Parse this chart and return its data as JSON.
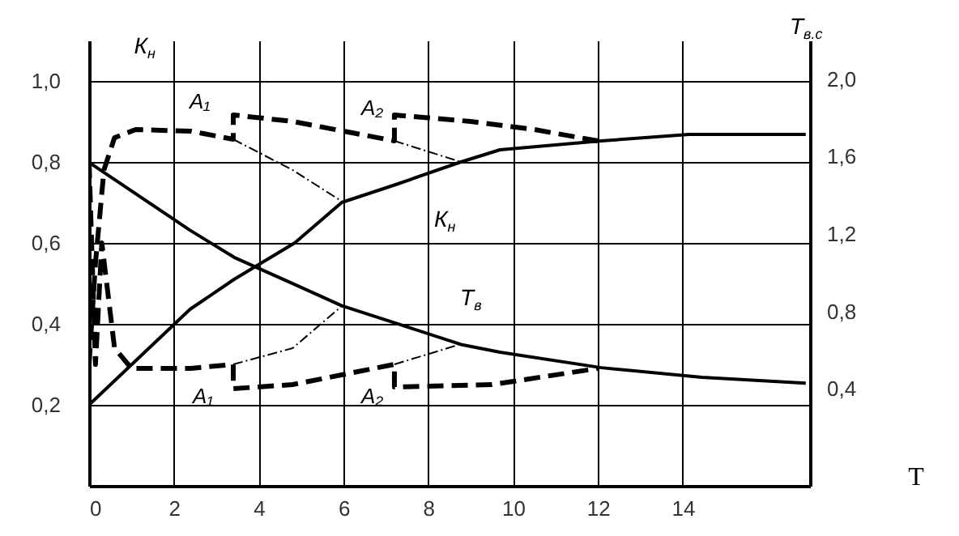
{
  "chart_data": {
    "type": "line",
    "xlabel": "T",
    "ylabel": "К$_{н}$",
    "y2label": "Т$_{в.с}$",
    "xlim": [
      0,
      17
    ],
    "xticks": [
      0,
      2,
      4,
      6,
      8,
      10,
      12,
      14
    ],
    "ylim": [
      0,
      1.1
    ],
    "yticks": [
      {
        "value": 0.2,
        "label": "0,2"
      },
      {
        "value": 0.4,
        "label": "0,4"
      },
      {
        "value": 0.6,
        "label": "0,6"
      },
      {
        "value": 0.8,
        "label": "0,8"
      },
      {
        "value": 1.0,
        "label": "1,0"
      }
    ],
    "y2lim": [
      -0.1,
      2.2
    ],
    "y2ticks": [
      {
        "value": 0.4,
        "label": "0,4"
      },
      {
        "value": 0.8,
        "label": "0,8"
      },
      {
        "value": 1.2,
        "label": "1,2"
      },
      {
        "value": 1.6,
        "label": "1,6"
      },
      {
        "value": 2.0,
        "label": "2,0"
      }
    ],
    "grid": true,
    "series": [
      {
        "name": "К$_{н}$",
        "color": "#000000",
        "line_style": "solid",
        "x": [
          0,
          2.38,
          3.42,
          4.85,
          5.96,
          7.23,
          8.77,
          9.69,
          12.08,
          14.15,
          16.9
        ],
        "values": [
          0.2,
          0.436,
          0.51,
          0.6,
          0.7,
          0.744,
          0.8,
          0.83,
          0.852,
          0.868,
          0.868
        ]
      },
      {
        "name": "Т$_{в}$",
        "color": "#000000",
        "line_style": "solid",
        "axis": "y2",
        "x": [
          0,
          2.38,
          3.42,
          4.85,
          5.96,
          7.23,
          8.77,
          9.69,
          12.08,
          14.45,
          16.9
        ],
        "values": [
          1.57,
          1.22,
          1.08,
          0.94,
          0.83,
          0.74,
          0.63,
          0.59,
          0.51,
          0.46,
          0.43
        ]
      },
      {
        "color": "#000000",
        "line_style": "dashed",
        "x": [
          0,
          0.15,
          0.35,
          0.6,
          1.1,
          2.4,
          3.4,
          3.4,
          4.8,
          7.2,
          7.2,
          9.0,
          10.5,
          12.0
        ],
        "values": [
          0.3,
          0.55,
          0.78,
          0.86,
          0.88,
          0.876,
          0.856,
          0.916,
          0.9,
          0.852,
          0.916,
          0.9,
          0.88,
          0.852
        ]
      },
      {
        "color": "#000000",
        "line_style": "dashed",
        "x": [
          0,
          0.15,
          0.3,
          0.6,
          1.0,
          2.4,
          3.4,
          3.4,
          4.8,
          7.2,
          7.2,
          9.5,
          12.0
        ],
        "values": [
          0.8,
          0.3,
          0.6,
          0.34,
          0.29,
          0.29,
          0.3,
          0.24,
          0.25,
          0.3,
          0.244,
          0.25,
          0.29
        ]
      },
      {
        "color": "#000000",
        "line_style": "dotted",
        "x": [
          3.4,
          4.8,
          6.0
        ],
        "values": [
          0.856,
          0.78,
          0.7
        ]
      },
      {
        "color": "#000000",
        "line_style": "dotted",
        "x": [
          7.2,
          8.77
        ],
        "values": [
          0.852,
          0.8
        ]
      },
      {
        "color": "#000000",
        "line_style": "dotted",
        "x": [
          3.4,
          4.8,
          5.96
        ],
        "values": [
          0.3,
          0.34,
          0.444
        ]
      },
      {
        "color": "#000000",
        "line_style": "dotted",
        "x": [
          7.2,
          8.77
        ],
        "values": [
          0.3,
          0.35
        ]
      }
    ],
    "annotations": [
      "A₁",
      "A₂",
      "A₁",
      "A₂"
    ]
  }
}
